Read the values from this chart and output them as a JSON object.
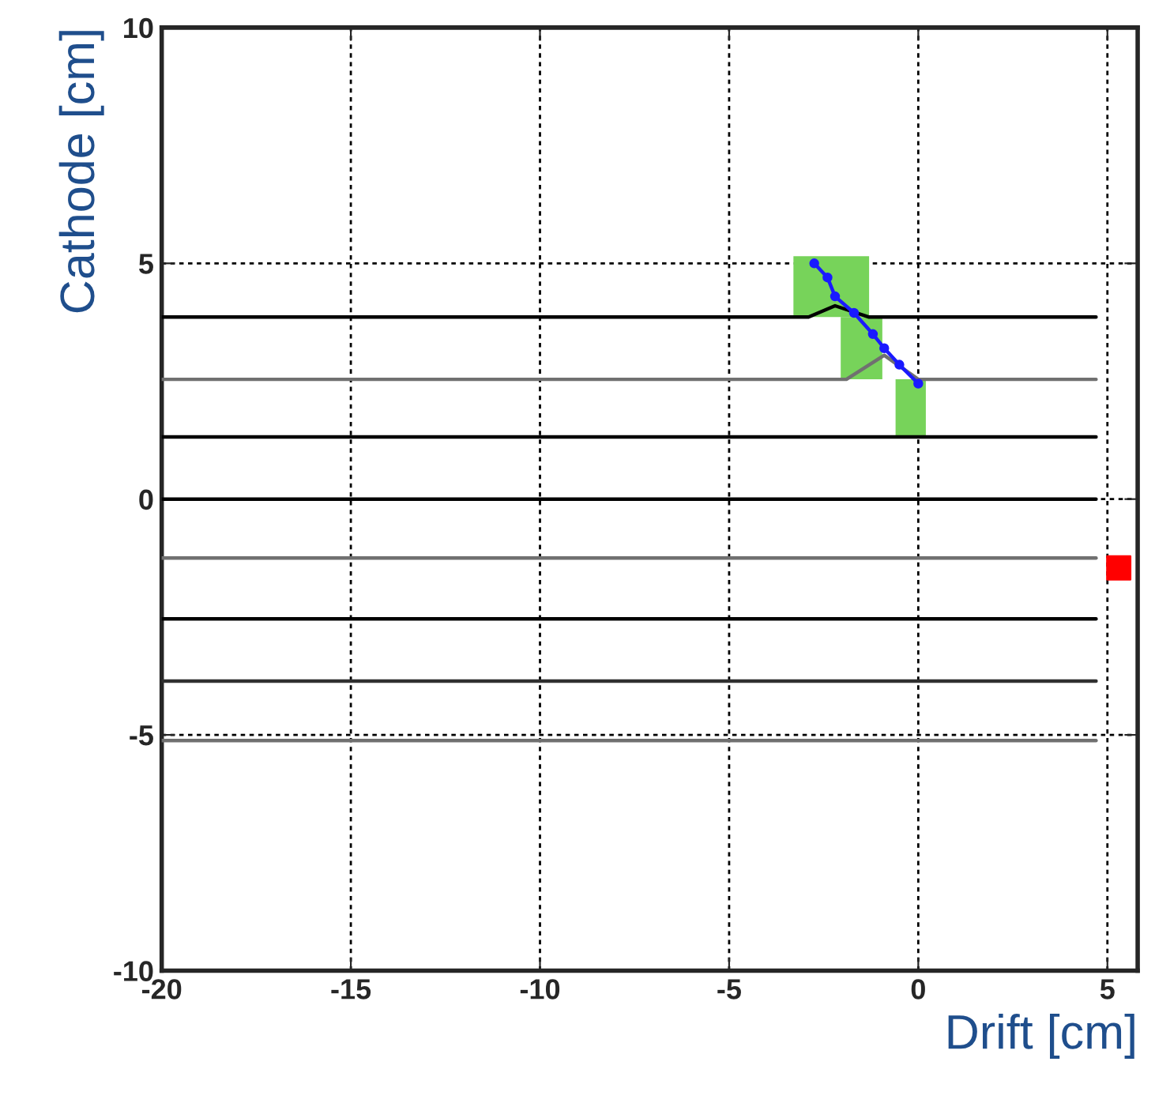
{
  "chart_data": {
    "type": "line",
    "xlabel": "Drift [cm]",
    "ylabel": "Cathode [cm]",
    "xlim": [
      -20,
      5.8
    ],
    "ylim": [
      -10,
      10
    ],
    "xticks": [
      -20,
      -15,
      -10,
      -5,
      0,
      5
    ],
    "yticks": [
      -10,
      -5,
      0,
      5,
      10
    ],
    "grid": true,
    "series": [
      {
        "type": "line",
        "color": "#77d35a",
        "x": [
          -3.3,
          -1.3
        ],
        "values": [
          null,
          null
        ],
        "lower": [
          3.86,
          3.86
        ],
        "upper": [
          5.15,
          5.15
        ]
      },
      {
        "type": "line",
        "color": "#77d35a",
        "x": [
          -2.05,
          -0.95
        ],
        "values": [
          null,
          null
        ],
        "lower": [
          2.54,
          2.54
        ],
        "upper": [
          3.86,
          3.86
        ]
      },
      {
        "type": "line",
        "color": "#77d35a",
        "x": [
          -0.6,
          0.2
        ],
        "values": [
          null,
          null
        ],
        "lower": [
          1.32,
          1.32
        ],
        "upper": [
          2.54,
          2.54
        ]
      },
      {
        "color": "#000000",
        "x": [
          -20,
          -2.9,
          -2.2,
          -1.3,
          4.7
        ],
        "values": [
          3.86,
          3.86,
          4.1,
          3.86,
          3.86
        ]
      },
      {
        "type": "line",
        "color": "#707070",
        "x": [
          -20,
          -1.9,
          -0.9,
          0,
          4.7
        ],
        "values": [
          2.54,
          2.54,
          3.05,
          2.54,
          2.54
        ]
      },
      {
        "type": "line",
        "color": "#000000",
        "x": [
          -20,
          4.7
        ],
        "values": [
          1.32,
          1.32
        ]
      },
      {
        "type": "line",
        "color": "#000000",
        "x": [
          -20,
          4.7
        ],
        "values": [
          0,
          0
        ]
      },
      {
        "type": "line",
        "color": "#707070",
        "x": [
          -20,
          4.7
        ],
        "values": [
          -1.25,
          -1.25
        ]
      },
      {
        "type": "line",
        "color": "#000000",
        "x": [
          -20,
          4.7
        ],
        "values": [
          -2.54,
          -2.54
        ]
      },
      {
        "type": "line",
        "color": "#303030",
        "x": [
          -20,
          4.7
        ],
        "values": [
          -3.86,
          -3.86
        ]
      },
      {
        "type": "line",
        "color": "#707070",
        "x": [
          -20,
          4.7
        ],
        "values": [
          -5.12,
          -5.12
        ]
      },
      {
        "type": "line",
        "color": "#1a1aff",
        "marker": "circle",
        "x": [
          -2.75,
          -2.4,
          -2.2,
          -1.7,
          -1.2,
          -0.9,
          -0.5,
          0
        ],
        "values": [
          5.0,
          4.7,
          4.3,
          3.95,
          3.5,
          3.2,
          2.85,
          2.45
        ]
      },
      {
        "type": "scatter",
        "color": "#ff0000",
        "marker": "square",
        "x": [
          5.3
        ],
        "values": [
          -1.46
        ]
      }
    ]
  }
}
